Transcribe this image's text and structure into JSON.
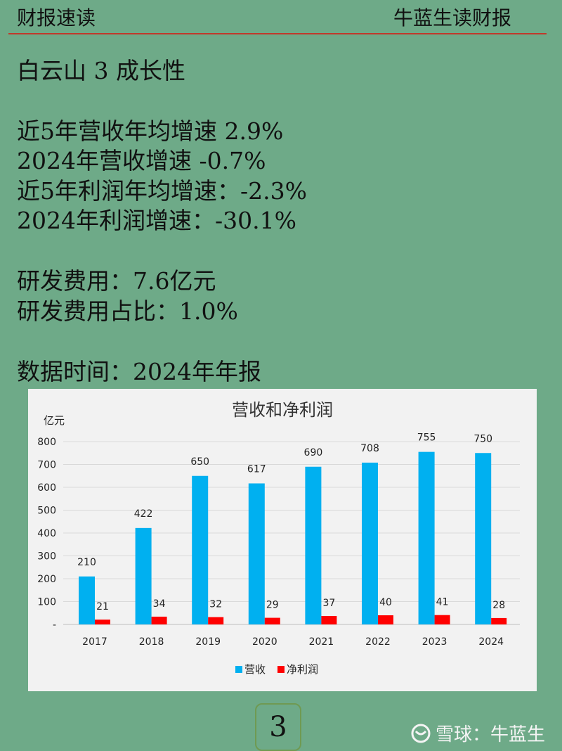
{
  "header": {
    "left": "财报速读",
    "right": "牛蓝生读财报"
  },
  "lines": [
    "白云山 3 成长性",
    "近5年营收年均增速 2.9%",
    "2024年营收增速 -0.7%",
    "近5年利润年均增速：-2.3%",
    "2024年利润增速：-30.1%",
    "研发费用：7.6亿元",
    "研发费用占比：1.0%",
    "数据时间：2024年年报"
  ],
  "page_number": "3",
  "watermark": "雪球：牛蓝生",
  "chart_data": {
    "type": "bar",
    "title": "营收和净利润",
    "ylabel": "亿元",
    "ylim": [
      0,
      800
    ],
    "yticks": [
      "-",
      "100",
      "200",
      "300",
      "400",
      "500",
      "600",
      "700",
      "800"
    ],
    "categories": [
      "2017",
      "2018",
      "2019",
      "2020",
      "2021",
      "2022",
      "2023",
      "2024"
    ],
    "series": [
      {
        "name": "营收",
        "color": "#00b0f0",
        "values": [
          210,
          422,
          650,
          617,
          690,
          708,
          755,
          750
        ]
      },
      {
        "name": "净利润",
        "color": "#ff0000",
        "values": [
          21,
          34,
          32,
          29,
          37,
          40,
          41,
          28
        ]
      }
    ],
    "legend": "bottom",
    "grid": true
  }
}
